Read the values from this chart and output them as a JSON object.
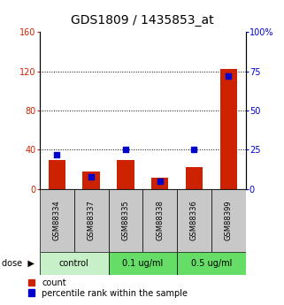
{
  "title": "GDS1809 / 1435853_at",
  "samples": [
    "GSM88334",
    "GSM88337",
    "GSM88335",
    "GSM88338",
    "GSM88336",
    "GSM88399"
  ],
  "count_values": [
    30,
    18,
    30,
    12,
    22,
    122
  ],
  "percentile_values": [
    22,
    8,
    25,
    5,
    25,
    72
  ],
  "left_ylim": [
    0,
    160
  ],
  "right_ylim": [
    0,
    100
  ],
  "left_yticks": [
    0,
    40,
    80,
    120,
    160
  ],
  "right_yticks": [
    0,
    25,
    50,
    75,
    100
  ],
  "right_yticklabels": [
    "0",
    "25",
    "50",
    "75",
    "100%"
  ],
  "bar_color": "#cc2200",
  "dot_color": "#0000cc",
  "bar_width": 0.5,
  "dot_size": 25,
  "label_count": "count",
  "label_percentile": "percentile rank within the sample",
  "bg_sample": "#c8c8c8",
  "bg_group_control": "#c8f0c8",
  "bg_group_other": "#66dd66",
  "title_fontsize": 10,
  "tick_fontsize": 7,
  "legend_fontsize": 7,
  "sample_fontsize": 6,
  "group_fontsize": 7
}
